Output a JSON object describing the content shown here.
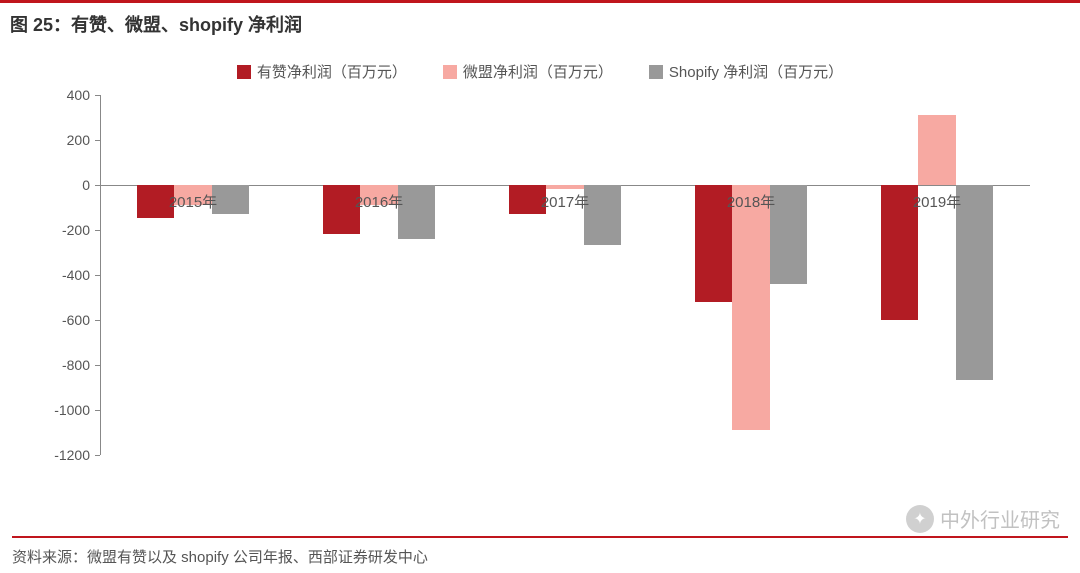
{
  "title": "图 25：有赞、微盟、shopify 净利润",
  "source": "资料来源：微盟有赞以及 shopify 公司年报、西部证券研发中心",
  "watermark": "中外行业研究",
  "chart": {
    "type": "bar",
    "categories": [
      "2015年",
      "2016年",
      "2017年",
      "2018年",
      "2019年"
    ],
    "series": [
      {
        "name": "有赞净利润（百万元）",
        "color": "#b21c24",
        "values": [
          -150,
          -220,
          -130,
          -520,
          -600
        ]
      },
      {
        "name": "微盟净利润（百万元）",
        "color": "#f7a9a2",
        "values": [
          -90,
          -90,
          -20,
          -1090,
          310
        ]
      },
      {
        "name": "Shopify 净利润（百万元）",
        "color": "#999999",
        "values": [
          -130,
          -240,
          -270,
          -440,
          -870
        ]
      }
    ],
    "ylim": [
      -1200,
      400
    ],
    "ytick_step": 200,
    "bar_width": 0.2,
    "group_gap": 0.4,
    "background_color": "#ffffff",
    "axis_color": "#888888",
    "tick_font_color": "#555555",
    "tick_fontsize": 14,
    "title_fontsize": 18,
    "legend_fontsize": 15
  }
}
